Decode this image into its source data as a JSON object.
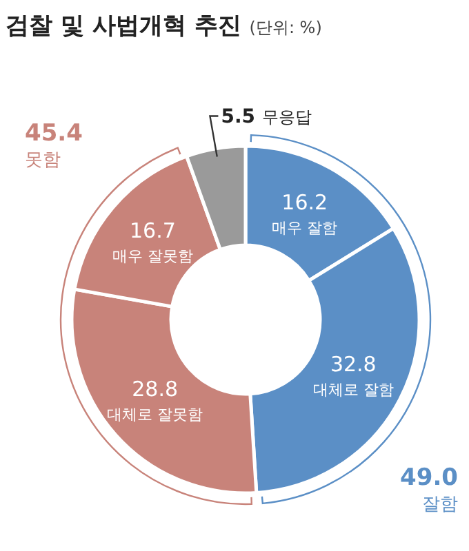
{
  "chart_data": {
    "type": "donut",
    "title": "검찰 및 사법개혁 추진",
    "subtitle": "(단위: %)",
    "categories": [
      "매우 잘함",
      "대체로 잘함",
      "대체로 잘못함",
      "매우 잘못함",
      "무응답"
    ],
    "values": [
      16.2,
      32.8,
      28.8,
      16.7,
      5.5
    ],
    "colors": [
      "#5b8fc6",
      "#5b8fc6",
      "#c8837a",
      "#c8837a",
      "#9a9a9a"
    ],
    "data_labels": true,
    "annotations": [
      "49.0 잘함",
      "45.4 못함"
    ]
  }
}
